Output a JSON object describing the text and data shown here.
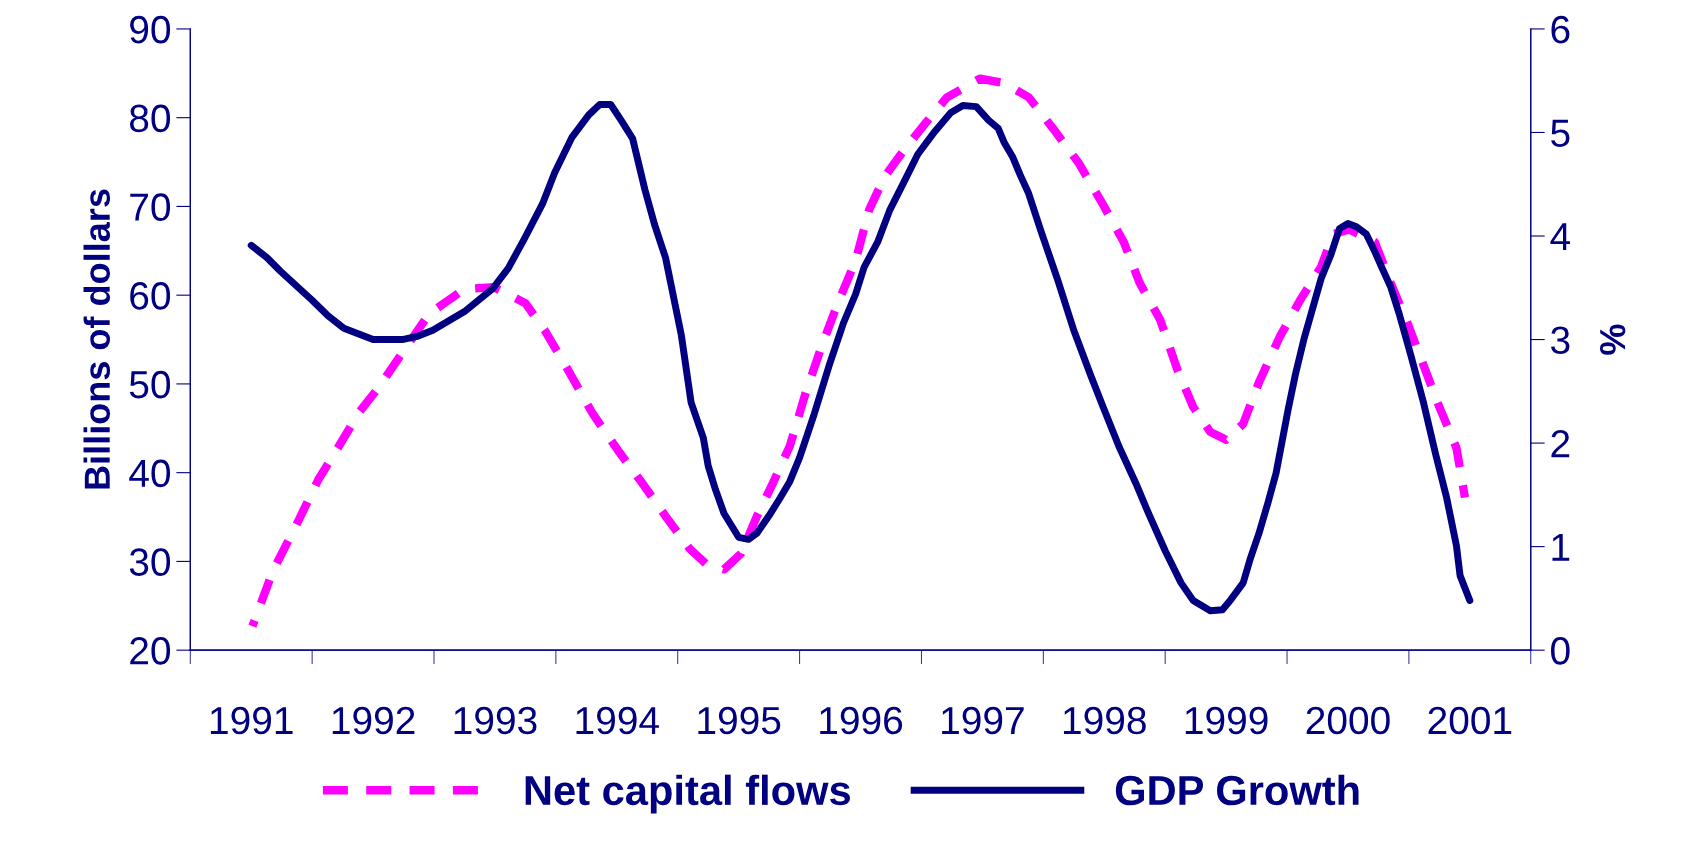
{
  "chart_data": {
    "type": "line",
    "series": [
      {
        "name": "Net capital flows",
        "color": "#ff00ff",
        "line_style": "dashed",
        "axis": "y",
        "x": [
          1991.01,
          1991.18,
          1991.37,
          1991.55,
          1991.72,
          1991.88,
          1992.04,
          1992.27,
          1992.46,
          1992.75,
          1992.99,
          1993.25,
          1993.41,
          1993.59,
          1993.8,
          1994.01,
          1994.21,
          1994.4,
          1994.6,
          1994.75,
          1994.88,
          1995.02,
          1995.15,
          1995.28,
          1995.42,
          1995.55,
          1995.69,
          1995.82,
          1995.96,
          1996.07,
          1996.2,
          1996.37,
          1996.54,
          1996.71,
          1996.98,
          1997.18,
          1997.38,
          1997.59,
          1997.79,
          1997.99,
          1998.16,
          1998.29,
          1998.46,
          1998.6,
          1998.73,
          1998.87,
          1999.0,
          1999.14,
          1999.27,
          1999.44,
          1999.61,
          1999.78,
          1999.88,
          2000.01,
          2000.22,
          2000.35,
          2000.49,
          2000.62,
          2000.75,
          2000.89,
          2000.96
        ],
        "values": [
          22.7,
          29.0,
          34.1,
          39.2,
          43.0,
          46.7,
          49.5,
          54.1,
          57.9,
          60.7,
          60.9,
          59.1,
          56.0,
          51.8,
          46.7,
          42.5,
          38.8,
          35.1,
          31.4,
          29.5,
          29.1,
          30.9,
          35.1,
          38.8,
          43.0,
          49.0,
          54.6,
          59.3,
          63.9,
          69.6,
          73.4,
          76.6,
          79.5,
          82.3,
          84.4,
          83.9,
          82.3,
          78.6,
          74.9,
          70.2,
          66.0,
          61.4,
          57.2,
          51.6,
          47.4,
          44.6,
          43.7,
          45.5,
          50.2,
          55.3,
          59.5,
          63.2,
          66.9,
          67.4,
          66.0,
          61.4,
          56.8,
          52.1,
          47.4,
          42.8,
          37.2
        ]
      },
      {
        "name": "GDP Growth",
        "color": "#000080",
        "line_style": "solid",
        "axis": "y2",
        "x": [
          1991.0,
          1991.13,
          1991.24,
          1991.5,
          1991.63,
          1991.76,
          1992.0,
          1992.24,
          1992.36,
          1992.49,
          1992.75,
          1992.98,
          1993.11,
          1993.24,
          1993.39,
          1993.49,
          1993.63,
          1993.77,
          1993.86,
          1993.95,
          1994.04,
          1994.13,
          1994.23,
          1994.31,
          1994.4,
          1994.53,
          1994.61,
          1994.71,
          1994.75,
          1994.81,
          1994.88,
          1995.0,
          1995.08,
          1995.15,
          1995.25,
          1995.34,
          1995.42,
          1995.5,
          1995.62,
          1995.74,
          1995.86,
          1995.96,
          1996.03,
          1996.14,
          1996.24,
          1996.36,
          1996.47,
          1996.61,
          1996.74,
          1996.84,
          1996.95,
          1997.05,
          1997.13,
          1997.18,
          1997.25,
          1997.31,
          1997.38,
          1997.48,
          1997.62,
          1997.75,
          1997.89,
          1997.99,
          1998.12,
          1998.26,
          1998.36,
          1998.5,
          1998.63,
          1998.73,
          1998.87,
          1998.97,
          1999.04,
          1999.14,
          1999.2,
          1999.27,
          1999.34,
          1999.41,
          1999.51,
          1999.57,
          1999.64,
          1999.71,
          1999.78,
          1999.86,
          1999.93,
          2000.0,
          2000.07,
          2000.15,
          2000.22,
          2000.28,
          2000.35,
          2000.42,
          2000.52,
          2000.62,
          2000.72,
          2000.81,
          2000.89,
          2000.92,
          2001.0
        ],
        "values": [
          3.91,
          3.79,
          3.66,
          3.38,
          3.23,
          3.11,
          3.0,
          3.0,
          3.03,
          3.09,
          3.27,
          3.49,
          3.69,
          3.97,
          4.31,
          4.61,
          4.95,
          5.17,
          5.27,
          5.27,
          5.11,
          4.94,
          4.45,
          4.11,
          3.79,
          3.04,
          2.39,
          2.05,
          1.78,
          1.55,
          1.32,
          1.09,
          1.07,
          1.13,
          1.3,
          1.47,
          1.63,
          1.86,
          2.28,
          2.74,
          3.16,
          3.44,
          3.7,
          3.94,
          4.25,
          4.53,
          4.79,
          5.01,
          5.19,
          5.26,
          5.25,
          5.12,
          5.04,
          4.9,
          4.76,
          4.59,
          4.41,
          4.05,
          3.57,
          3.09,
          2.65,
          2.35,
          1.97,
          1.61,
          1.33,
          0.96,
          0.65,
          0.48,
          0.38,
          0.39,
          0.49,
          0.65,
          0.89,
          1.13,
          1.41,
          1.71,
          2.33,
          2.67,
          3.01,
          3.3,
          3.59,
          3.82,
          4.07,
          4.12,
          4.09,
          4.02,
          3.85,
          3.69,
          3.51,
          3.25,
          2.83,
          2.39,
          1.89,
          1.47,
          1.01,
          0.72,
          0.48
        ]
      }
    ],
    "ylabel": "Billions of dollars",
    "y2label": "%",
    "xlim": [
      1990.5,
      2001.5
    ],
    "xticks": [
      {
        "value": 1990.5,
        "label": null
      },
      1991,
      {
        "value": 1991.5,
        "label": null
      },
      1992,
      {
        "value": 1992.5,
        "label": null
      },
      1993,
      {
        "value": 1993.5,
        "label": null
      },
      1994,
      {
        "value": 1994.5,
        "label": null
      },
      1995,
      {
        "value": 1995.5,
        "label": null
      },
      1996,
      {
        "value": 1996.5,
        "label": null
      },
      1997,
      {
        "value": 1997.5,
        "label": null
      },
      1998,
      {
        "value": 1998.5,
        "label": null
      },
      1999,
      {
        "value": 1999.5,
        "label": null
      },
      2000,
      {
        "value": 2000.5,
        "label": null
      },
      2001,
      {
        "value": 2001.5,
        "label": null
      }
    ],
    "ylim": [
      20,
      90
    ],
    "yticks": [
      20,
      30,
      40,
      50,
      60,
      70,
      80,
      90
    ],
    "y2lim": [
      0,
      6
    ],
    "y2ticks": [
      0,
      1,
      2,
      3,
      4,
      5,
      6
    ],
    "legend": "bottom",
    "grid": false
  }
}
